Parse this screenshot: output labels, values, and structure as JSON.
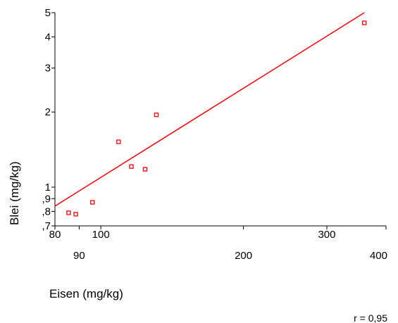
{
  "chart_data": {
    "type": "scatter",
    "title": "",
    "xlabel": "Eisen (mg/kg)",
    "ylabel": "Blei (mg/kg)",
    "x_scale": "log",
    "y_scale": "log",
    "xlim": [
      80,
      400
    ],
    "ylim": [
      0.7,
      5
    ],
    "grid": false,
    "legend": "none",
    "x_ticks_major_labels": [
      "80",
      "100",
      "300"
    ],
    "x_ticks_major_values": [
      80,
      100,
      300
    ],
    "x_ticks_minor_labels": [
      "90",
      "200",
      "400"
    ],
    "x_ticks_minor_values": [
      90,
      200,
      400
    ],
    "y_tick_labels": [
      "5",
      "4",
      "3",
      "2",
      "1",
      ",9",
      ",8",
      ",7"
    ],
    "y_tick_values": [
      5,
      4,
      3,
      2,
      1,
      0.9,
      0.8,
      0.7
    ],
    "points": [
      {
        "x": 85.5,
        "y": 0.79
      },
      {
        "x": 88.5,
        "y": 0.78
      },
      {
        "x": 96,
        "y": 0.87
      },
      {
        "x": 109,
        "y": 1.52
      },
      {
        "x": 116,
        "y": 1.21
      },
      {
        "x": 124,
        "y": 1.18
      },
      {
        "x": 131,
        "y": 1.95
      },
      {
        "x": 360,
        "y": 4.55
      }
    ],
    "fit_line": {
      "x": [
        80,
        360
      ],
      "y": [
        0.84,
        5.0
      ]
    },
    "annotation": "r = 0,95",
    "colors": {
      "points": "#e8141b",
      "line": "#e8141b",
      "axes": "#000000"
    }
  }
}
